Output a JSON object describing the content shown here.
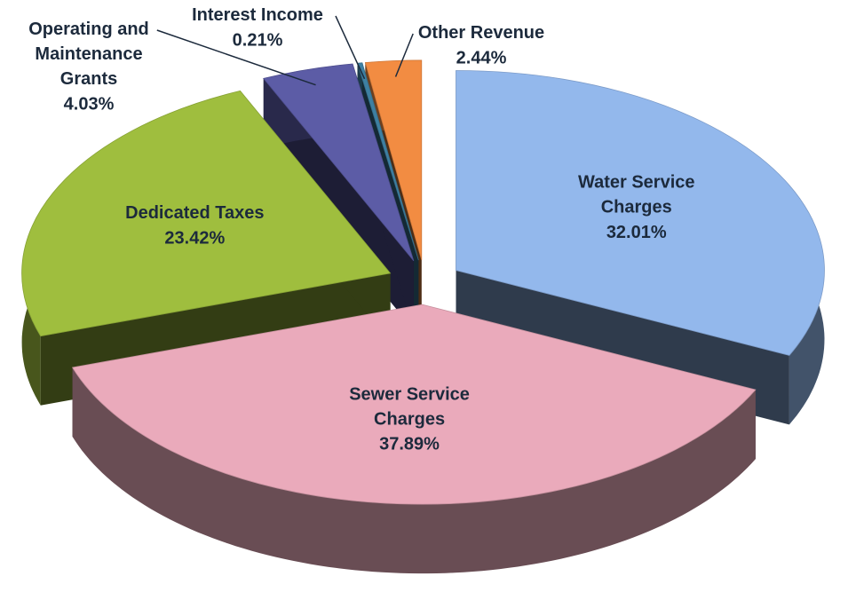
{
  "chart_data": {
    "type": "pie",
    "categories": [
      "Water Service Charges",
      "Sewer Service Charges",
      "Dedicated Taxes",
      "Operating and Maintenance Grants",
      "Interest Income",
      "Other Revenue"
    ],
    "values": [
      32.01,
      37.89,
      23.42,
      4.03,
      0.21,
      2.44
    ],
    "value_labels": [
      "32.01%",
      "37.89%",
      "23.42%",
      "4.03%",
      "0.21%",
      "2.44%"
    ],
    "colors": [
      "#93b8ec",
      "#eaaabb",
      "#9fbe3e",
      "#5c5ca6",
      "#3e80a2",
      "#f28c42"
    ]
  }
}
